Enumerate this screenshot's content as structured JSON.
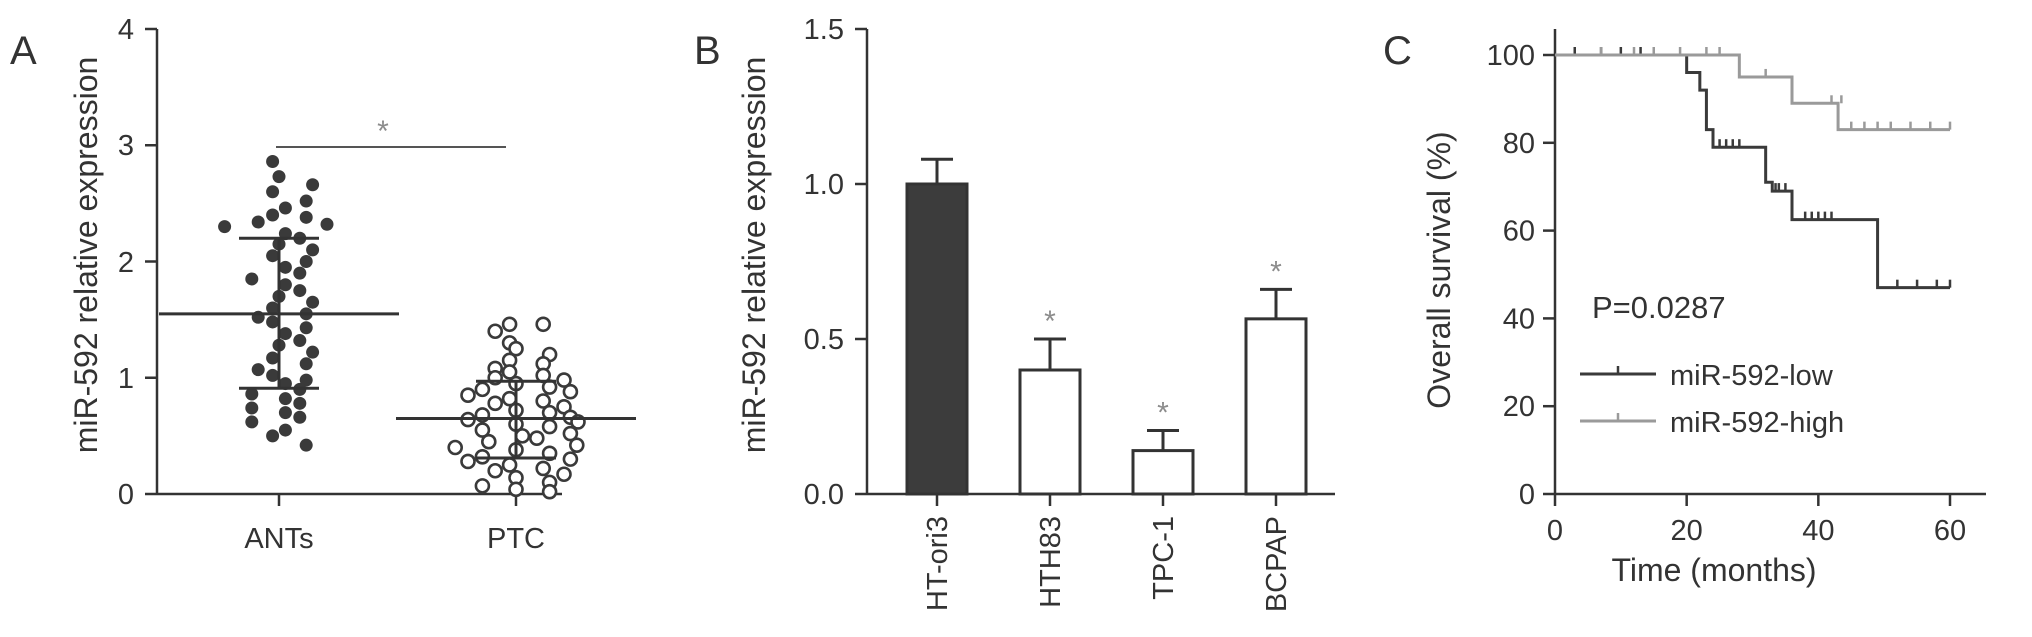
{
  "colors": {
    "ink": "#333333",
    "dark_fill": "#3c3c3c",
    "dark_series": "#3a3a3a",
    "light_series": "#9a9a9a",
    "star": "#8c8c8c",
    "open_marker_fill": "#ffffff"
  },
  "chart_data": [
    {
      "panel": "A",
      "type": "scatter",
      "ylabel": "miR-592 relative expression",
      "ylim": [
        0,
        4
      ],
      "yticks": [
        "0",
        "1",
        "2",
        "3",
        "4"
      ],
      "categories": [
        "ANTs",
        "PTC"
      ],
      "significance": "*",
      "groups": [
        {
          "name": "ANTs",
          "marker": "filled",
          "mean": 1.55,
          "sd_low": 0.91,
          "sd_high": 2.2,
          "points": [
            2.86,
            2.73,
            2.66,
            2.6,
            2.52,
            2.46,
            2.4,
            2.38,
            2.34,
            2.32,
            2.3,
            2.24,
            2.2,
            2.15,
            2.1,
            2.05,
            2.0,
            1.95,
            1.9,
            1.85,
            1.8,
            1.75,
            1.7,
            1.65,
            1.6,
            1.55,
            1.52,
            1.48,
            1.43,
            1.38,
            1.32,
            1.28,
            1.22,
            1.17,
            1.12,
            1.07,
            1.02,
            0.98,
            0.95,
            0.9,
            0.86,
            0.82,
            0.78,
            0.74,
            0.7,
            0.66,
            0.62,
            0.55,
            0.5,
            0.42
          ]
        },
        {
          "name": "PTC",
          "marker": "open",
          "mean": 0.65,
          "sd_low": 0.31,
          "sd_high": 0.97,
          "points": [
            1.46,
            1.46,
            1.4,
            1.3,
            1.25,
            1.2,
            1.15,
            1.12,
            1.08,
            1.05,
            1.02,
            1.0,
            0.98,
            0.95,
            0.92,
            0.9,
            0.88,
            0.85,
            0.82,
            0.8,
            0.78,
            0.75,
            0.72,
            0.7,
            0.68,
            0.66,
            0.64,
            0.62,
            0.6,
            0.58,
            0.55,
            0.52,
            0.5,
            0.48,
            0.45,
            0.42,
            0.4,
            0.38,
            0.35,
            0.32,
            0.3,
            0.28,
            0.25,
            0.22,
            0.2,
            0.17,
            0.14,
            0.1,
            0.07,
            0.04,
            0.02
          ]
        }
      ]
    },
    {
      "panel": "B",
      "type": "bar",
      "ylabel": "miR-592 relative expression",
      "ylim": [
        0,
        1.5
      ],
      "yticks": [
        "0.0",
        "0.5",
        "1.0",
        "1.5"
      ],
      "categories": [
        "HT-ori3",
        "HTH83",
        "TPC-1",
        "BCPAP"
      ],
      "values": [
        1.0,
        0.4,
        0.14,
        0.565
      ],
      "errors": [
        0.08,
        0.1,
        0.065,
        0.095
      ],
      "filled": [
        true,
        false,
        false,
        false
      ],
      "significant": [
        false,
        true,
        true,
        true
      ],
      "significance_symbol": "*"
    },
    {
      "panel": "C",
      "type": "line",
      "ylabel": "Overall survival (%)",
      "xlabel": "Time (months)",
      "xlim": [
        0,
        60
      ],
      "ylim": [
        0,
        100
      ],
      "xticks": [
        "0",
        "20",
        "40",
        "60"
      ],
      "yticks": [
        "0",
        "20",
        "40",
        "60",
        "80",
        "100"
      ],
      "annotation": "P=0.0287",
      "legend_position": "bottom-left",
      "series": [
        {
          "name": "miR-592-low",
          "steps": [
            [
              0,
              100
            ],
            [
              20,
              100
            ],
            [
              20,
              96
            ],
            [
              22,
              96
            ],
            [
              22,
              92
            ],
            [
              23,
              92
            ],
            [
              23,
              83
            ],
            [
              24,
              83
            ],
            [
              24,
              79
            ],
            [
              32,
              79
            ],
            [
              32,
              71
            ],
            [
              33,
              71
            ],
            [
              33,
              69
            ],
            [
              36,
              69
            ],
            [
              36,
              62.5
            ],
            [
              49,
              62.5
            ],
            [
              49,
              47
            ],
            [
              60,
              47
            ]
          ],
          "censor": [
            [
              3,
              100
            ],
            [
              7,
              100
            ],
            [
              10,
              100
            ],
            [
              13,
              100
            ],
            [
              25,
              79
            ],
            [
              26,
              79
            ],
            [
              27,
              79
            ],
            [
              28,
              79
            ],
            [
              33.5,
              69
            ],
            [
              34,
              69
            ],
            [
              35,
              69
            ],
            [
              38,
              62.5
            ],
            [
              39,
              62.5
            ],
            [
              40,
              62.5
            ],
            [
              41,
              62.5
            ],
            [
              42,
              62.5
            ],
            [
              52,
              47
            ],
            [
              55,
              47
            ],
            [
              58,
              47
            ],
            [
              60,
              47
            ]
          ]
        },
        {
          "name": "miR-592-high",
          "steps": [
            [
              0,
              100
            ],
            [
              28,
              100
            ],
            [
              28,
              95
            ],
            [
              36,
              95
            ],
            [
              36,
              89
            ],
            [
              43,
              89
            ],
            [
              43,
              83
            ],
            [
              60,
              83
            ]
          ],
          "censor": [
            [
              7,
              100
            ],
            [
              12,
              100
            ],
            [
              15,
              100
            ],
            [
              19,
              100
            ],
            [
              23,
              100
            ],
            [
              25,
              100
            ],
            [
              32,
              95
            ],
            [
              42,
              89
            ],
            [
              43.5,
              89
            ],
            [
              45,
              83
            ],
            [
              47,
              83
            ],
            [
              49,
              83
            ],
            [
              51,
              83
            ],
            [
              54,
              83
            ],
            [
              57,
              83
            ],
            [
              60,
              83
            ]
          ]
        }
      ]
    }
  ]
}
